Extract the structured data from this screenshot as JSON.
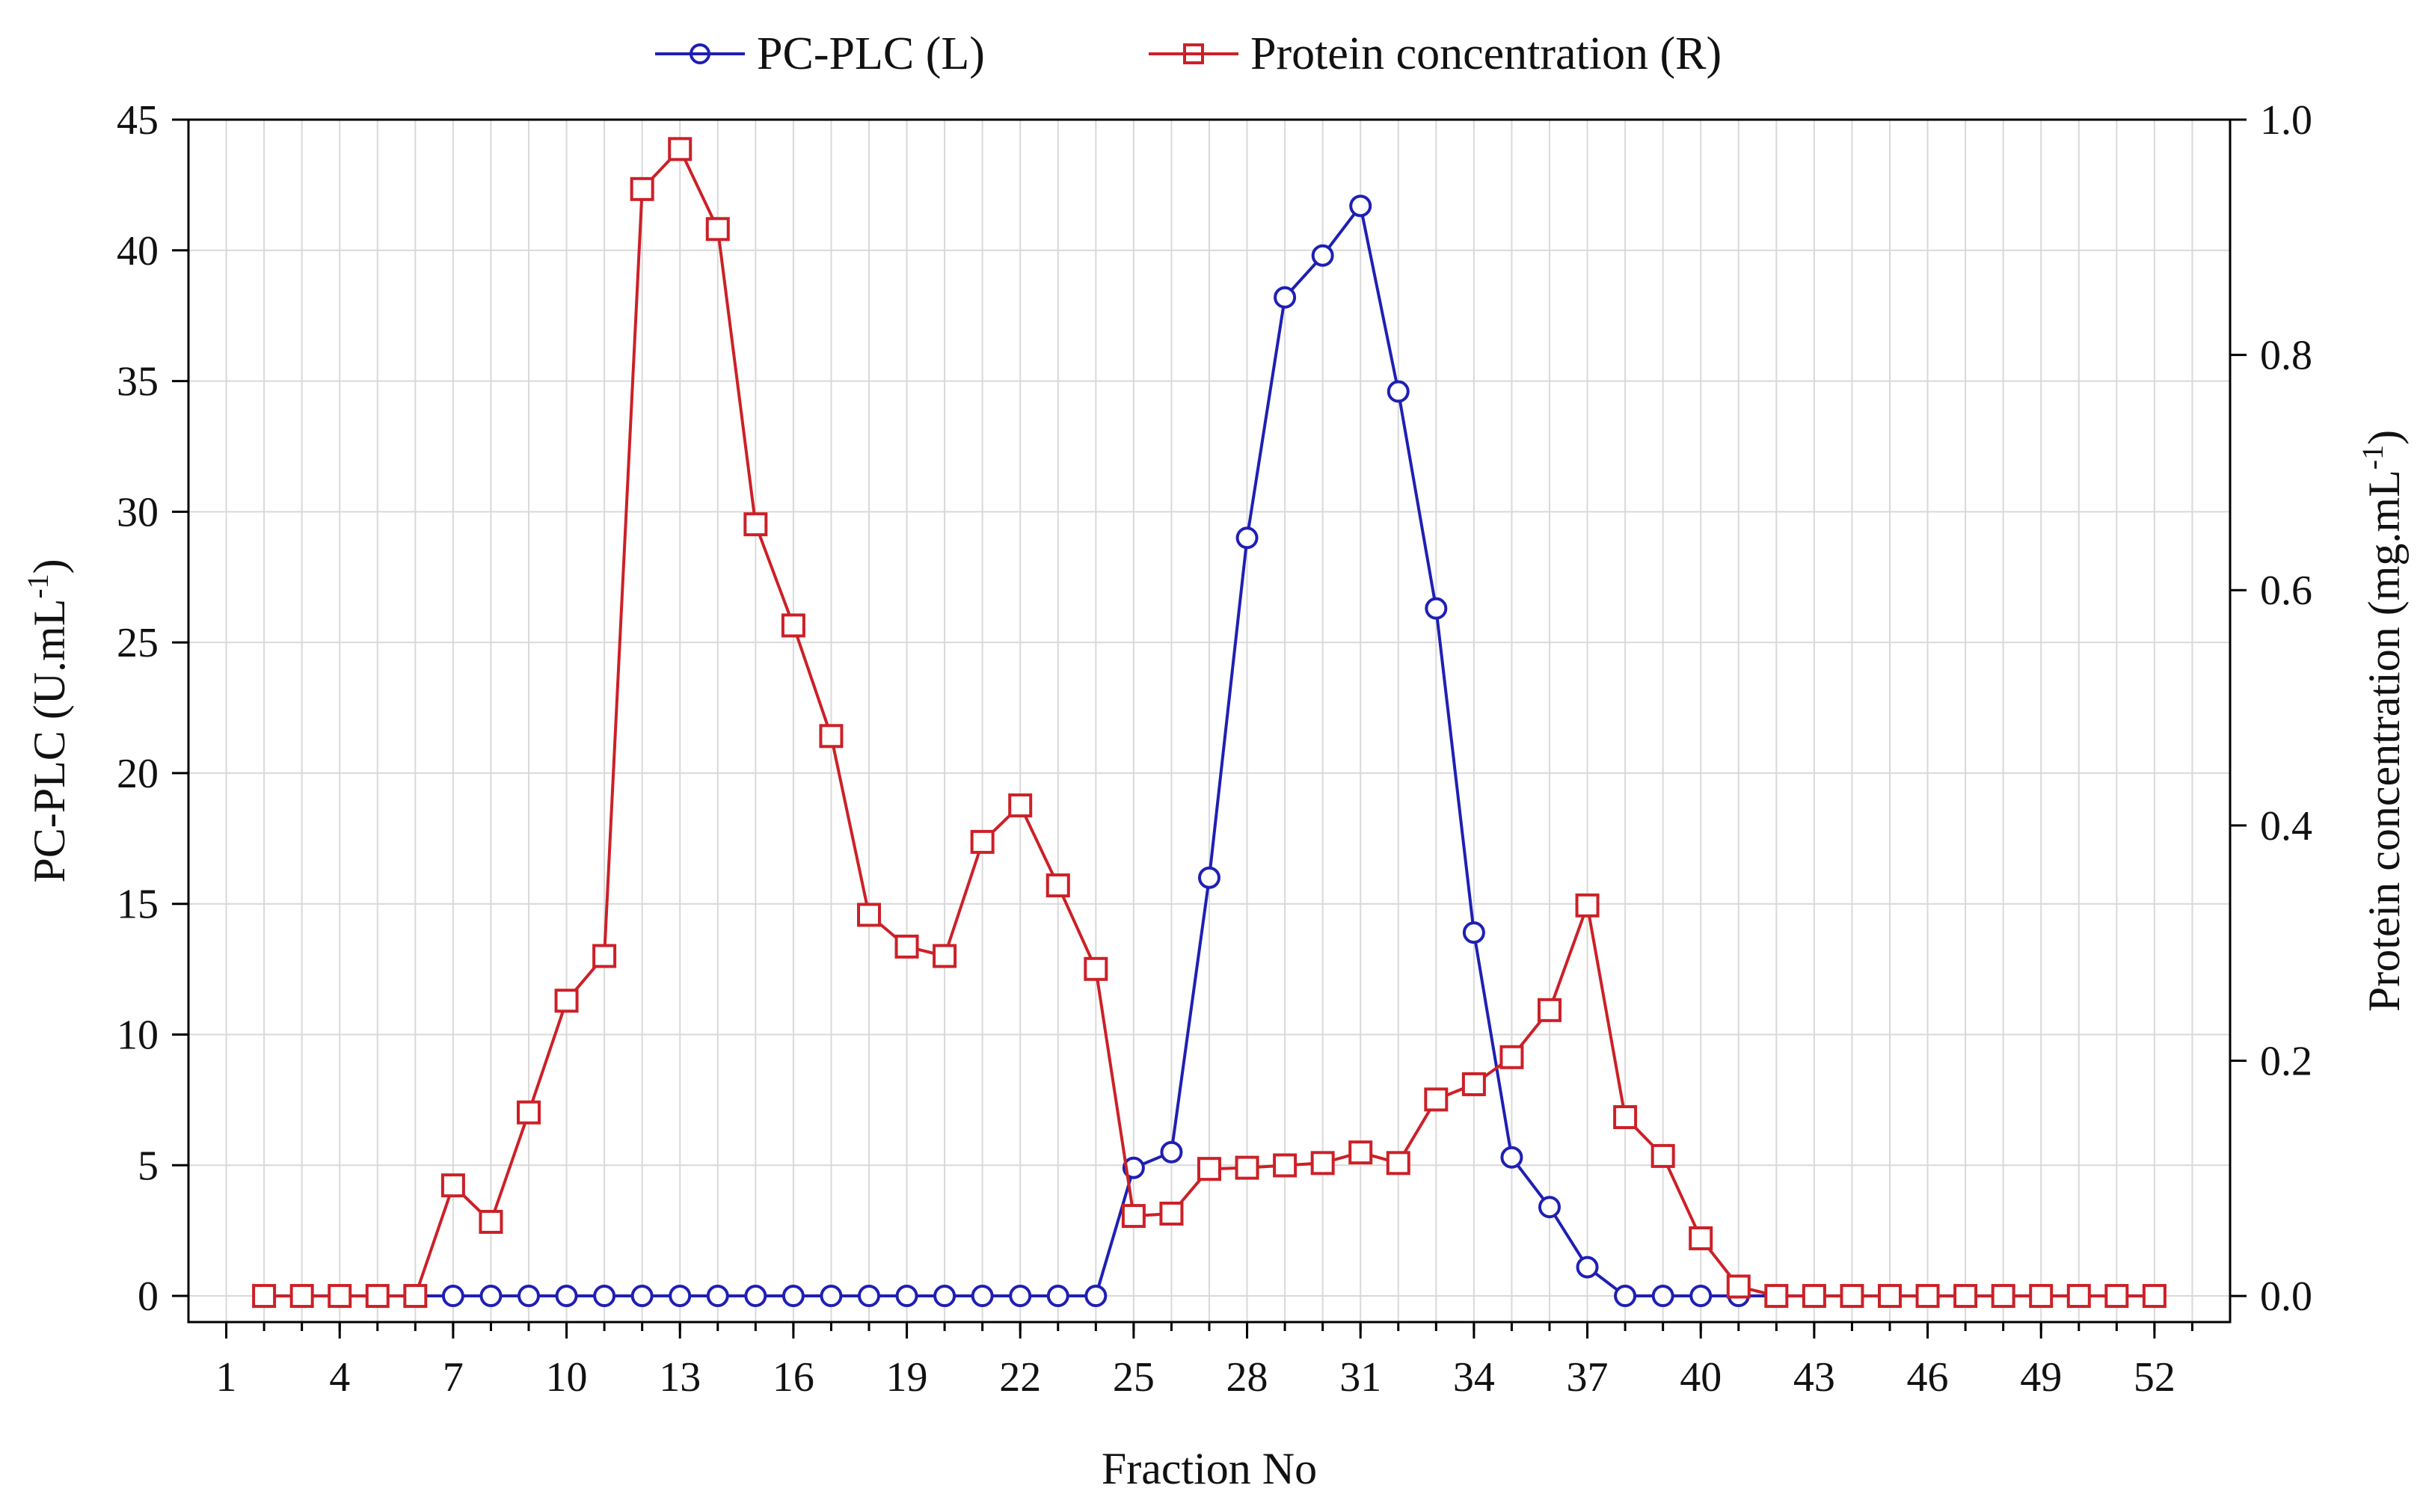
{
  "chart_data": {
    "type": "line",
    "title": "",
    "xlabel": "Fraction No",
    "ylabel_left": {
      "main": "PC-PLC (U.mL",
      "sup": "-1",
      "end": ")"
    },
    "ylabel_right": {
      "main": "Protein concentration (mg.mL",
      "sup": "-1",
      "end": ")"
    },
    "x_ticks": [
      "1",
      "4",
      "7",
      "10",
      "13",
      "16",
      "19",
      "22",
      "25",
      "28",
      "31",
      "34",
      "37",
      "40",
      "43",
      "46",
      "49",
      "52"
    ],
    "y_left_ticks": [
      "0",
      "5",
      "10",
      "15",
      "20",
      "25",
      "30",
      "35",
      "40",
      "45"
    ],
    "y_right_ticks": [
      "0.0",
      "0.2",
      "0.4",
      "0.6",
      "0.8",
      "1.0"
    ],
    "xlim": [
      0,
      54
    ],
    "ylim_left": [
      -1,
      45
    ],
    "ylim_right": [
      -0.0222,
      1.0
    ],
    "legend_position": "top-center",
    "grid": true,
    "series": [
      {
        "name": "PC-PLC  (L)",
        "axis": "left",
        "color": "#1f1fb4",
        "marker": "circle",
        "x": [
          2,
          3,
          4,
          5,
          6,
          7,
          8,
          9,
          10,
          11,
          12,
          13,
          14,
          15,
          16,
          17,
          18,
          19,
          20,
          21,
          22,
          23,
          24,
          25,
          26,
          27,
          28,
          29,
          30,
          31,
          32,
          33,
          34,
          35,
          36,
          37,
          38,
          39,
          40,
          41,
          42,
          43,
          44,
          45,
          46,
          47,
          48,
          49,
          50,
          51,
          52
        ],
        "values": [
          0,
          0,
          0,
          0,
          0,
          0,
          0,
          0,
          0,
          0,
          0,
          0,
          0,
          0,
          0,
          0,
          0,
          0,
          0,
          0,
          0,
          0,
          0,
          4.9,
          5.5,
          16,
          29,
          38.2,
          39.8,
          41.7,
          34.6,
          26.3,
          13.9,
          5.3,
          3.4,
          1.1,
          0,
          0,
          0,
          0,
          0,
          0,
          0,
          0,
          0,
          0,
          0,
          0,
          0,
          0,
          0
        ]
      },
      {
        "name": "Protein concentration (R)",
        "axis": "right",
        "color": "#cc2027",
        "marker": "square",
        "x": [
          2,
          3,
          4,
          5,
          6,
          7,
          8,
          9,
          10,
          11,
          12,
          13,
          14,
          15,
          16,
          17,
          18,
          19,
          20,
          21,
          22,
          23,
          24,
          25,
          26,
          27,
          28,
          29,
          30,
          31,
          32,
          33,
          34,
          35,
          36,
          37,
          38,
          39,
          40,
          41,
          42,
          43,
          44,
          45,
          46,
          47,
          48,
          49,
          50,
          51,
          52
        ],
        "values": [
          0,
          0,
          0,
          0,
          0,
          0.094,
          0.063,
          0.156,
          0.251,
          0.289,
          0.941,
          0.975,
          0.907,
          0.656,
          0.57,
          0.476,
          0.324,
          0.297,
          0.289,
          0.386,
          0.417,
          0.349,
          0.278,
          0.068,
          0.07,
          0.108,
          0.109,
          0.111,
          0.113,
          0.122,
          0.113,
          0.167,
          0.18,
          0.203,
          0.243,
          0.332,
          0.152,
          0.119,
          0.049,
          0.008,
          0,
          0,
          0,
          0,
          0,
          0,
          0,
          0,
          0,
          0,
          0
        ]
      }
    ]
  }
}
